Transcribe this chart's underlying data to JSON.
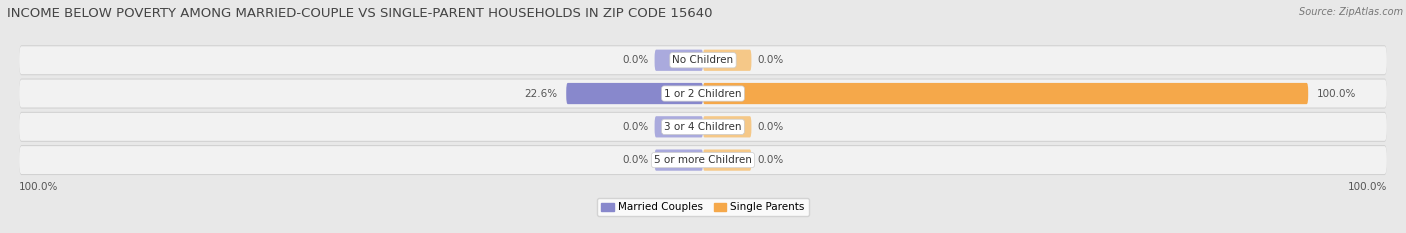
{
  "title": "INCOME BELOW POVERTY AMONG MARRIED-COUPLE VS SINGLE-PARENT HOUSEHOLDS IN ZIP CODE 15640",
  "source": "Source: ZipAtlas.com",
  "categories": [
    "No Children",
    "1 or 2 Children",
    "3 or 4 Children",
    "5 or more Children"
  ],
  "married_values": [
    0.0,
    22.6,
    0.0,
    0.0
  ],
  "single_values": [
    0.0,
    100.0,
    0.0,
    0.0
  ],
  "married_color": "#8888cc",
  "single_color": "#f5a84a",
  "married_stub_color": "#aaaadd",
  "single_stub_color": "#f5c888",
  "axis_label_left": "100.0%",
  "axis_label_right": "100.0%",
  "bg_color": "#e8e8e8",
  "row_bg_color": "#f2f2f2",
  "row_shadow_color": "#d0d0d0",
  "title_fontsize": 9.5,
  "label_fontsize": 7.5,
  "category_fontsize": 7.5,
  "source_fontsize": 7
}
